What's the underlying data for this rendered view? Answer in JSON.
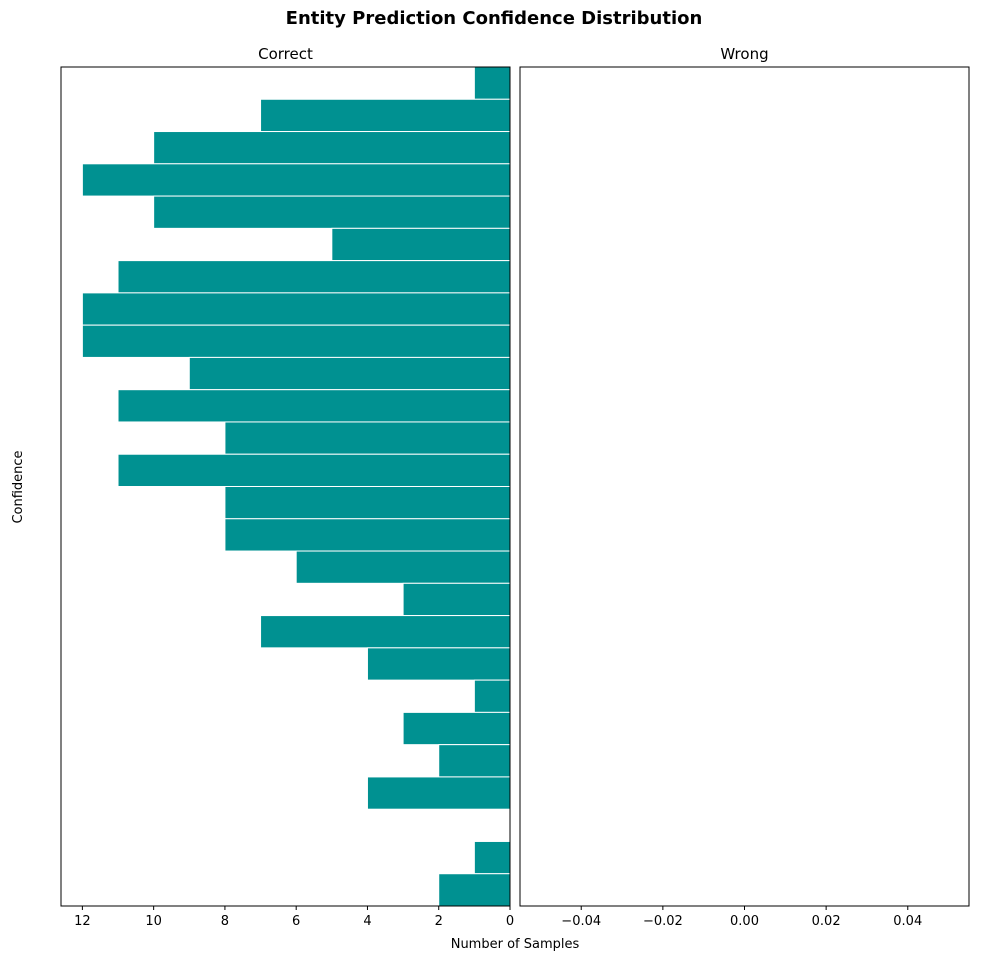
{
  "chart_data": {
    "type": "bar",
    "orientation": "horizontal",
    "title": "Entity Prediction Confidence Distribution",
    "xlabel": "Number of Samples",
    "ylabel": "Confidence",
    "bar_color": "#009191",
    "bar_edge_color": "#ffffff",
    "grid": false,
    "panels": [
      {
        "title": "Correct",
        "xlim": [
          12.6,
          0
        ],
        "xticks": [
          12,
          10,
          8,
          6,
          4,
          2,
          0
        ],
        "xtick_labels": [
          "12",
          "10",
          "8",
          "6",
          "4",
          "2",
          "0"
        ],
        "bins_order": "top_to_bottom",
        "values": [
          1,
          7,
          10,
          12,
          10,
          5,
          11,
          12,
          12,
          9,
          11,
          8,
          11,
          8,
          8,
          6,
          3,
          7,
          4,
          1,
          3,
          2,
          4,
          0,
          1,
          2
        ]
      },
      {
        "title": "Wrong",
        "xlim": [
          -0.055,
          0.055
        ],
        "xticks": [
          -0.04,
          -0.02,
          0.0,
          0.02,
          0.04
        ],
        "xtick_labels": [
          "−0.04",
          "−0.02",
          "0.00",
          "0.02",
          "0.04"
        ],
        "values": []
      }
    ]
  }
}
